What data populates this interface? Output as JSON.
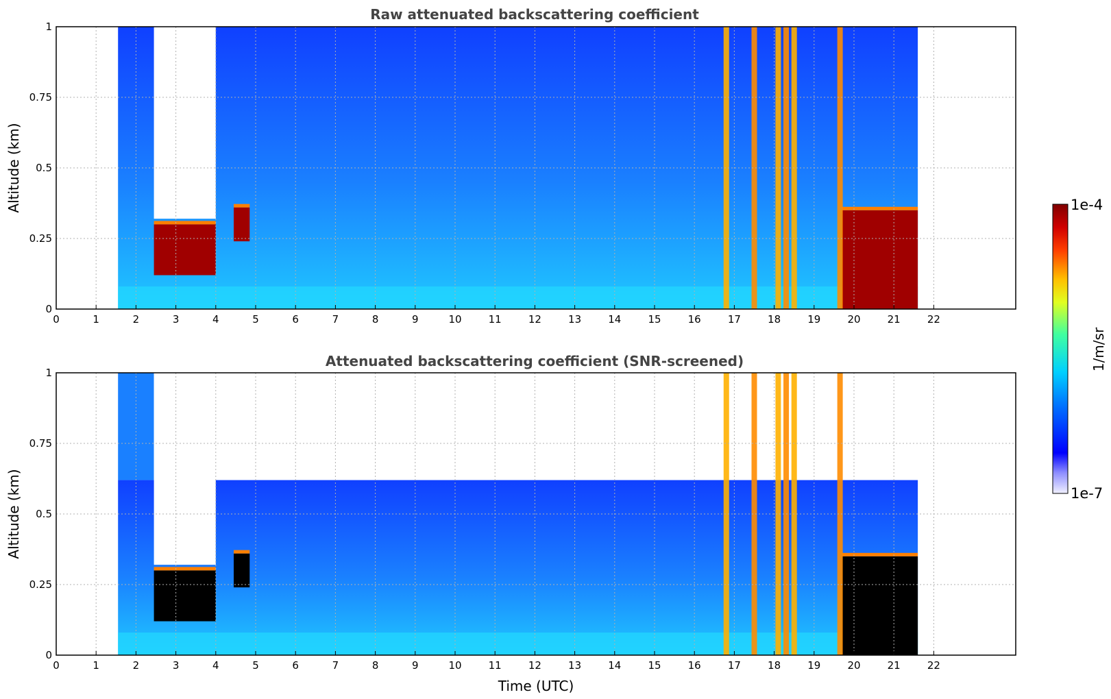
{
  "chart_data": [
    {
      "type": "heatmap",
      "title": "Raw attenuated backscattering coefficient",
      "xlabel": "",
      "ylabel": "Altitude (km)",
      "xlim": [
        0,
        24
      ],
      "ylim": [
        0,
        1
      ],
      "x_ticks": [
        "0",
        "1",
        "2",
        "3",
        "4",
        "5",
        "6",
        "7",
        "8",
        "9",
        "10",
        "11",
        "12",
        "13",
        "14",
        "15",
        "16",
        "17",
        "18",
        "19",
        "20",
        "21",
        "22"
      ],
      "y_ticks": [
        "0",
        "0.25",
        "0.5",
        "0.75",
        "1"
      ],
      "grid": true,
      "data_start_hour": 1.55,
      "data_end_hour": 21.6,
      "strong_layers": [
        {
          "from_hour": 2.45,
          "to_hour": 4.0,
          "from_km": 0.12,
          "to_km": 0.3
        },
        {
          "from_hour": 4.45,
          "to_hour": 4.85,
          "from_km": 0.24,
          "to_km": 0.36
        },
        {
          "from_hour": 19.7,
          "to_hour": 21.6,
          "from_km": 0.0,
          "to_km": 0.35
        }
      ],
      "strong_columns_hours": [
        16.8,
        17.5,
        18.1,
        18.3,
        18.5,
        19.65
      ]
    },
    {
      "type": "heatmap",
      "title": "Attenuated backscattering coefficient (SNR-screened)",
      "xlabel": "Time (UTC)",
      "ylabel": "Altitude (km)",
      "xlim": [
        0,
        24
      ],
      "ylim": [
        0,
        1
      ],
      "x_ticks": [
        "0",
        "1",
        "2",
        "3",
        "4",
        "5",
        "6",
        "7",
        "8",
        "9",
        "10",
        "11",
        "12",
        "13",
        "14",
        "15",
        "16",
        "17",
        "18",
        "19",
        "20",
        "21",
        "22"
      ],
      "y_ticks": [
        "0",
        "0.25",
        "0.5",
        "0.75",
        "1"
      ],
      "grid": true,
      "data_start_hour": 1.55,
      "data_end_hour": 21.6,
      "strong_layers": [
        {
          "from_hour": 2.45,
          "to_hour": 4.0,
          "from_km": 0.12,
          "to_km": 0.3
        },
        {
          "from_hour": 4.45,
          "to_hour": 4.85,
          "from_km": 0.24,
          "to_km": 0.36
        },
        {
          "from_hour": 19.7,
          "to_hour": 21.6,
          "from_km": 0.0,
          "to_km": 0.35
        }
      ],
      "strong_columns_hours": [
        16.8,
        17.5,
        18.1,
        18.3,
        18.5,
        19.65
      ]
    }
  ],
  "colorbar": {
    "label": "1/m/sr",
    "min_label": "1e-7",
    "max_label": "1e-4",
    "scale": "log",
    "colormap": "jet",
    "colors": [
      "#e8e8ff",
      "#0000ff",
      "#0080ff",
      "#00e0ff",
      "#40ff80",
      "#ffff00",
      "#ff8000",
      "#ff0000",
      "#800000"
    ]
  }
}
